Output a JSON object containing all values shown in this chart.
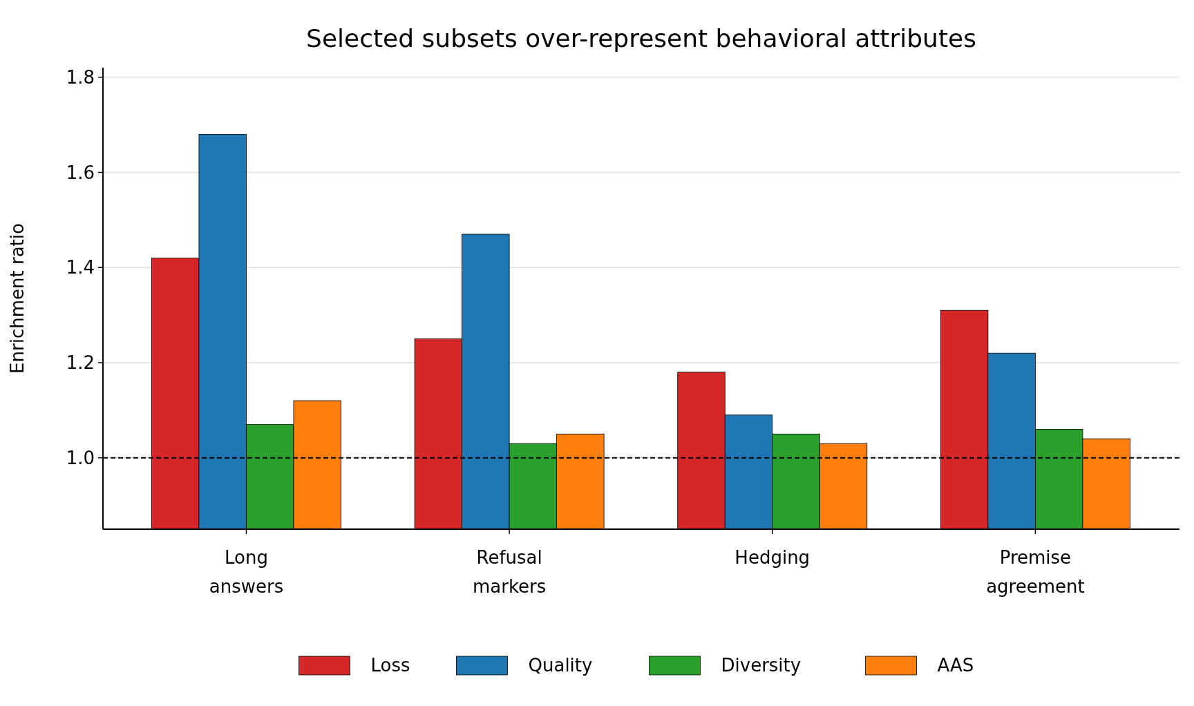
{
  "chart_data": {
    "type": "bar",
    "title": "Selected subsets over-represent behavioral attributes",
    "ylabel": "Enrichment ratio",
    "categories": [
      "Long answers",
      "Refusal markers",
      "Hedging",
      "Premise agreement"
    ],
    "series": [
      {
        "name": "Loss",
        "color": "#d62728",
        "values": [
          1.42,
          1.25,
          1.18,
          1.31
        ]
      },
      {
        "name": "Quality",
        "color": "#1f77b4",
        "values": [
          1.68,
          1.47,
          1.09,
          1.22
        ]
      },
      {
        "name": "Diversity",
        "color": "#2ca02c",
        "values": [
          1.07,
          1.03,
          1.05,
          1.06
        ]
      },
      {
        "name": "AAS",
        "color": "#ff7f0e",
        "values": [
          1.12,
          1.05,
          1.03,
          1.04
        ]
      }
    ],
    "ylim": [
      0.85,
      1.82
    ],
    "yticks": [
      {
        "value": 1.0,
        "label": "1.0"
      },
      1.2,
      1.4,
      1.6,
      1.8
    ],
    "grid": "y",
    "legend": "bottom",
    "ref_lines": [
      {
        "axis": "y",
        "value": 1.0,
        "label": null,
        "color": "#000000",
        "line_style": "dashed"
      }
    ]
  }
}
